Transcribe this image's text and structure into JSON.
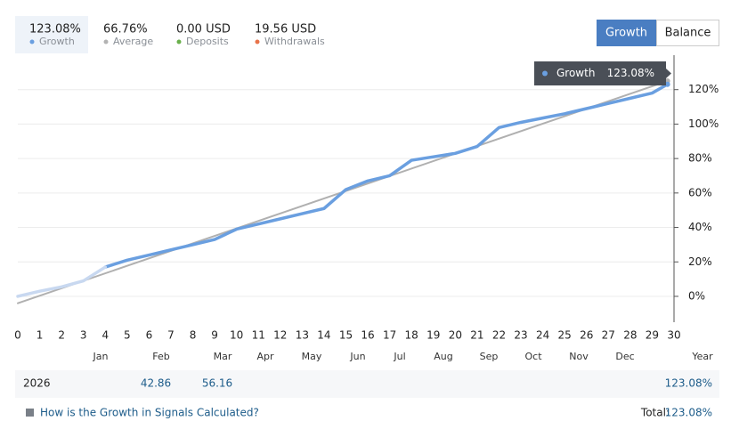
{
  "stats": [
    {
      "value": "123.08%",
      "label": "Growth",
      "color": "#6a9fe0"
    },
    {
      "value": "66.76%",
      "label": "Average",
      "color": "#b3b3b3"
    },
    {
      "value": "0.00 USD",
      "label": "Deposits",
      "color": "#6ab04c"
    },
    {
      "value": "19.56 USD",
      "label": "Withdrawals",
      "color": "#e8734a"
    }
  ],
  "buttons": [
    "Growth",
    "Balance"
  ],
  "tooltip": {
    "name": "Growth",
    "value": "123.08%"
  },
  "chart_data": {
    "type": "line",
    "xlim": [
      0,
      30
    ],
    "xticks": [
      0,
      1,
      2,
      3,
      4,
      5,
      6,
      7,
      8,
      9,
      10,
      11,
      12,
      13,
      14,
      15,
      16,
      17,
      18,
      19,
      20,
      21,
      22,
      23,
      24,
      25,
      26,
      27,
      28,
      29,
      30
    ],
    "ylim": [
      -15,
      140
    ],
    "yticks": [
      {
        "value": 0,
        "label": "0%"
      },
      {
        "value": 20,
        "label": "20%"
      },
      {
        "value": 40,
        "label": "40%"
      },
      {
        "value": 60,
        "label": "60%"
      },
      {
        "value": 80,
        "label": "80%"
      },
      {
        "value": 100,
        "label": "100%"
      },
      {
        "value": 120,
        "label": "120%"
      }
    ],
    "grid": true,
    "months": [
      "Jan",
      "Feb",
      "Mar",
      "Apr",
      "May",
      "Jun",
      "Jul",
      "Aug",
      "Sep",
      "Oct",
      "Nov",
      "Dec",
      "Year"
    ],
    "series": [
      {
        "color": "#c8d8f0",
        "x": [
          0,
          1,
          2,
          3,
          4
        ],
        "values": [
          0,
          3,
          5.5,
          9,
          17
        ]
      },
      {
        "name": "Growth",
        "color": "#6a9fe0",
        "x": [
          4,
          5,
          6,
          7,
          8,
          9,
          10,
          11,
          12,
          13,
          14,
          15,
          16,
          17,
          18,
          19,
          20,
          21,
          22,
          23,
          24,
          25,
          26,
          27,
          28,
          29,
          29.7
        ],
        "values": [
          17,
          21,
          24,
          27,
          30,
          33,
          39,
          42,
          45,
          48,
          51,
          62,
          67,
          70,
          79,
          81,
          83,
          87,
          98,
          101,
          103.5,
          106,
          109,
          112,
          115,
          118,
          123.08
        ]
      },
      {
        "name": "Average",
        "color": "#b0b0b0",
        "x": [
          0,
          29.7
        ],
        "values": [
          -4,
          125
        ]
      }
    ]
  },
  "table": {
    "year": "2026",
    "months": [
      null,
      "42.86",
      "56.16",
      null,
      null,
      null,
      null,
      null,
      null,
      null,
      null,
      null
    ],
    "year_total": "123.08%"
  },
  "footer": {
    "link": "How is the Growth in Signals Calculated?",
    "total_label": "Total:",
    "total_value": "123.08%"
  }
}
